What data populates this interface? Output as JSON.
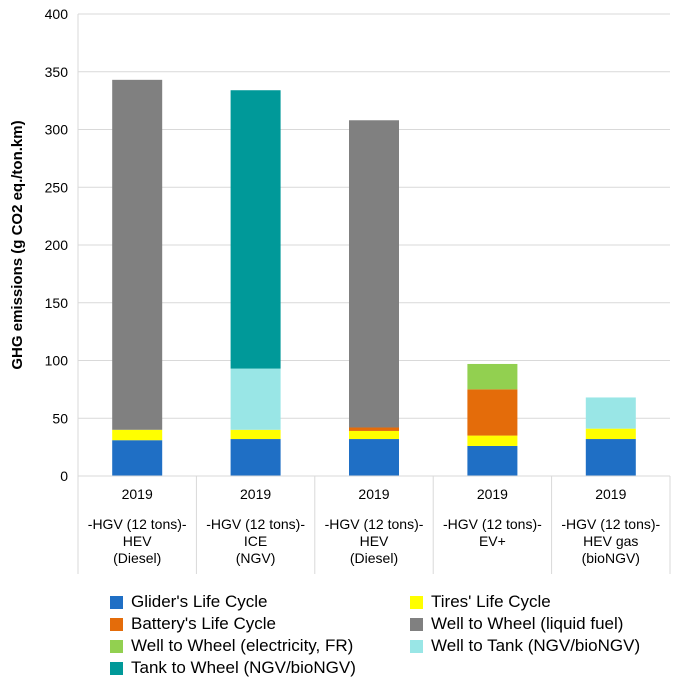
{
  "chart_data": {
    "type": "bar",
    "stacked": true,
    "title": "",
    "xlabel": "",
    "ylabel": "GHG emissions (g CO2 eq./ton.km)",
    "ylim": [
      0,
      400
    ],
    "yticks": [
      0,
      50,
      100,
      150,
      200,
      250,
      300,
      350,
      400
    ],
    "grid": true,
    "legend_position": "bottom",
    "categories": [
      {
        "year": "2019",
        "lines": [
          "-HGV (12 tons)-",
          "HEV",
          "(Diesel)"
        ]
      },
      {
        "year": "2019",
        "lines": [
          "-HGV (12 tons)-",
          "ICE",
          "(NGV)"
        ]
      },
      {
        "year": "2019",
        "lines": [
          "-HGV (12 tons)-",
          "HEV",
          "(Diesel)"
        ]
      },
      {
        "year": "2019",
        "lines": [
          "-HGV (12 tons)-",
          "EV+"
        ]
      },
      {
        "year": "2019",
        "lines": [
          "-HGV (12 tons)-",
          "HEV gas",
          "(bioNGV)"
        ]
      }
    ],
    "series": [
      {
        "name": "Glider's Life Cycle",
        "color": "#1f6fc5",
        "values": [
          31,
          32,
          32,
          26,
          32
        ]
      },
      {
        "name": "Tires' Life Cycle",
        "color": "#ffff00",
        "values": [
          9,
          8,
          7,
          9,
          9
        ]
      },
      {
        "name": "Battery's Life Cycle",
        "color": "#e46c0a",
        "values": [
          0,
          0,
          3,
          40,
          0
        ]
      },
      {
        "name": "Well to Wheel (liquid fuel)",
        "color": "#808080",
        "values": [
          303,
          0,
          266,
          0,
          0
        ]
      },
      {
        "name": "Well to Wheel (electricity, FR)",
        "color": "#92d050",
        "values": [
          0,
          0,
          0,
          22,
          0
        ]
      },
      {
        "name": "Well to Tank (NGV/bioNGV)",
        "color": "#99e6e6",
        "values": [
          0,
          53,
          0,
          0,
          27
        ]
      },
      {
        "name": "Tank to Wheel (NGV/bioNGV)",
        "color": "#009999",
        "values": [
          0,
          241,
          0,
          0,
          0
        ]
      }
    ],
    "legend_order": [
      0,
      1,
      2,
      3,
      4,
      5,
      6
    ]
  }
}
